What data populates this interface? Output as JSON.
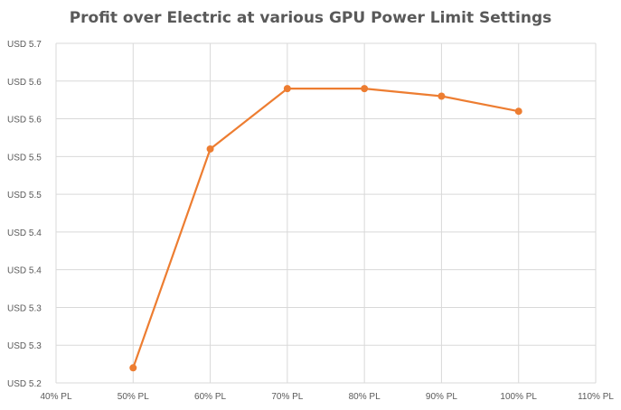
{
  "chart_data": {
    "type": "line",
    "title": "Profit over Electric at various GPU Power Limit Settings",
    "x_tick_labels": [
      "40% PL",
      "50% PL",
      "60% PL",
      "70% PL",
      "80% PL",
      "90% PL",
      "100% PL",
      "110% PL"
    ],
    "y_tick_labels": [
      "USD 5.2",
      "USD 5.3",
      "USD 5.3",
      "USD 5.4",
      "USD 5.4",
      "USD 5.5",
      "USD 5.5",
      "USD 5.6",
      "USD 5.6",
      "USD 5.7"
    ],
    "xlim": [
      40,
      110
    ],
    "ylim": [
      5.25,
      5.7
    ],
    "grid": true,
    "legend": "none",
    "series": [
      {
        "x": [
          50,
          60,
          70,
          80,
          90,
          100
        ],
        "y": [
          5.27,
          5.56,
          5.64,
          5.64,
          5.63,
          5.61
        ],
        "color": "#ed7d31"
      }
    ]
  }
}
